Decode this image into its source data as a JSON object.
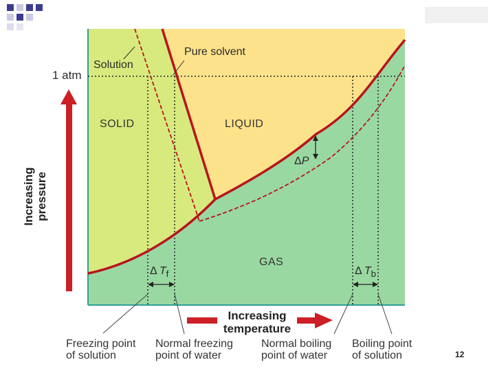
{
  "diagram": {
    "regions": {
      "solid": "SOLID",
      "liquid": "LIQUID",
      "gas": "GAS"
    },
    "curve_labels": {
      "solution": "Solution",
      "pure_solvent": "Pure solvent"
    },
    "pressure_mark": "1 atm",
    "delta_p": {
      "symbol": "Δ",
      "var": "P"
    },
    "delta_tf": {
      "symbol": "Δ",
      "var": "T",
      "sub": "f"
    },
    "delta_tb": {
      "symbol": "Δ",
      "var": "T",
      "sub": "b"
    },
    "y_axis": {
      "line1": "Increasing",
      "line2": "pressure"
    },
    "x_axis": {
      "line1": "Increasing",
      "line2": "temperature"
    },
    "bottom_labels": {
      "freezing_solution": {
        "line1": "Freezing point",
        "line2": "of solution"
      },
      "normal_freezing": {
        "line1": "Normal freezing",
        "line2": "point of water"
      },
      "normal_boiling": {
        "line1": "Normal boiling",
        "line2": "point of water"
      },
      "boiling_solution": {
        "line1": "Boiling point",
        "line2": "of solution"
      }
    },
    "colors": {
      "solid": "#d8ea7e",
      "liquid": "#fce28a",
      "gas": "#9ad8a2",
      "curve": "#b8141c",
      "arrow": "#cc1f26",
      "axis": "#2f9e94"
    }
  },
  "slide": {
    "page_number": "12"
  }
}
